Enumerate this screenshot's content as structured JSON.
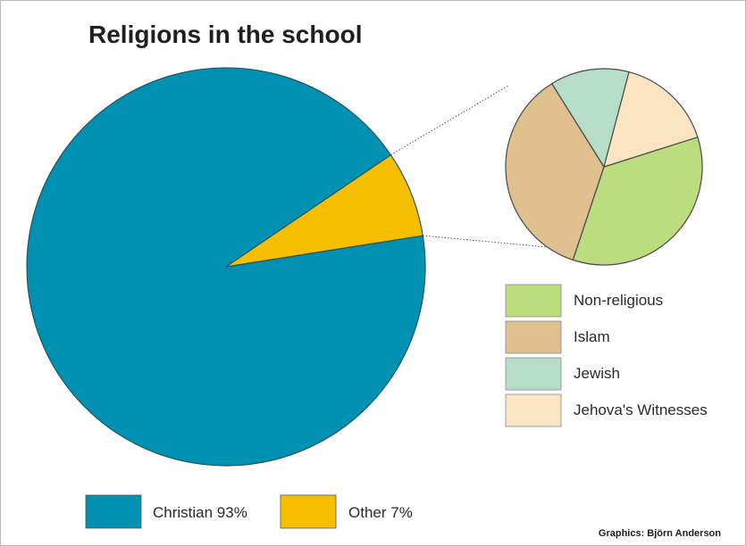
{
  "chart_data": [
    {
      "type": "pie",
      "title": "Religions in the school",
      "slices": [
        {
          "label": "Christian 93%",
          "value": 93,
          "color": "#0090b2"
        },
        {
          "label": "Other 7%",
          "value": 7,
          "color": "#f5bf00"
        }
      ],
      "legend_position": "bottom"
    },
    {
      "type": "pie",
      "title": "",
      "slices": [
        {
          "label": "Non-religious",
          "value": 35,
          "color": "#bcdd7e"
        },
        {
          "label": "Islam",
          "value": 36,
          "color": "#dfc08f"
        },
        {
          "label": "Jewish",
          "value": 13,
          "color": "#b5ddc8"
        },
        {
          "label": "Jehova's Witnesses",
          "value": 16,
          "color": "#fbe4c2"
        }
      ],
      "legend_position": "right"
    }
  ],
  "credit": "Graphics: Björn Anderson"
}
